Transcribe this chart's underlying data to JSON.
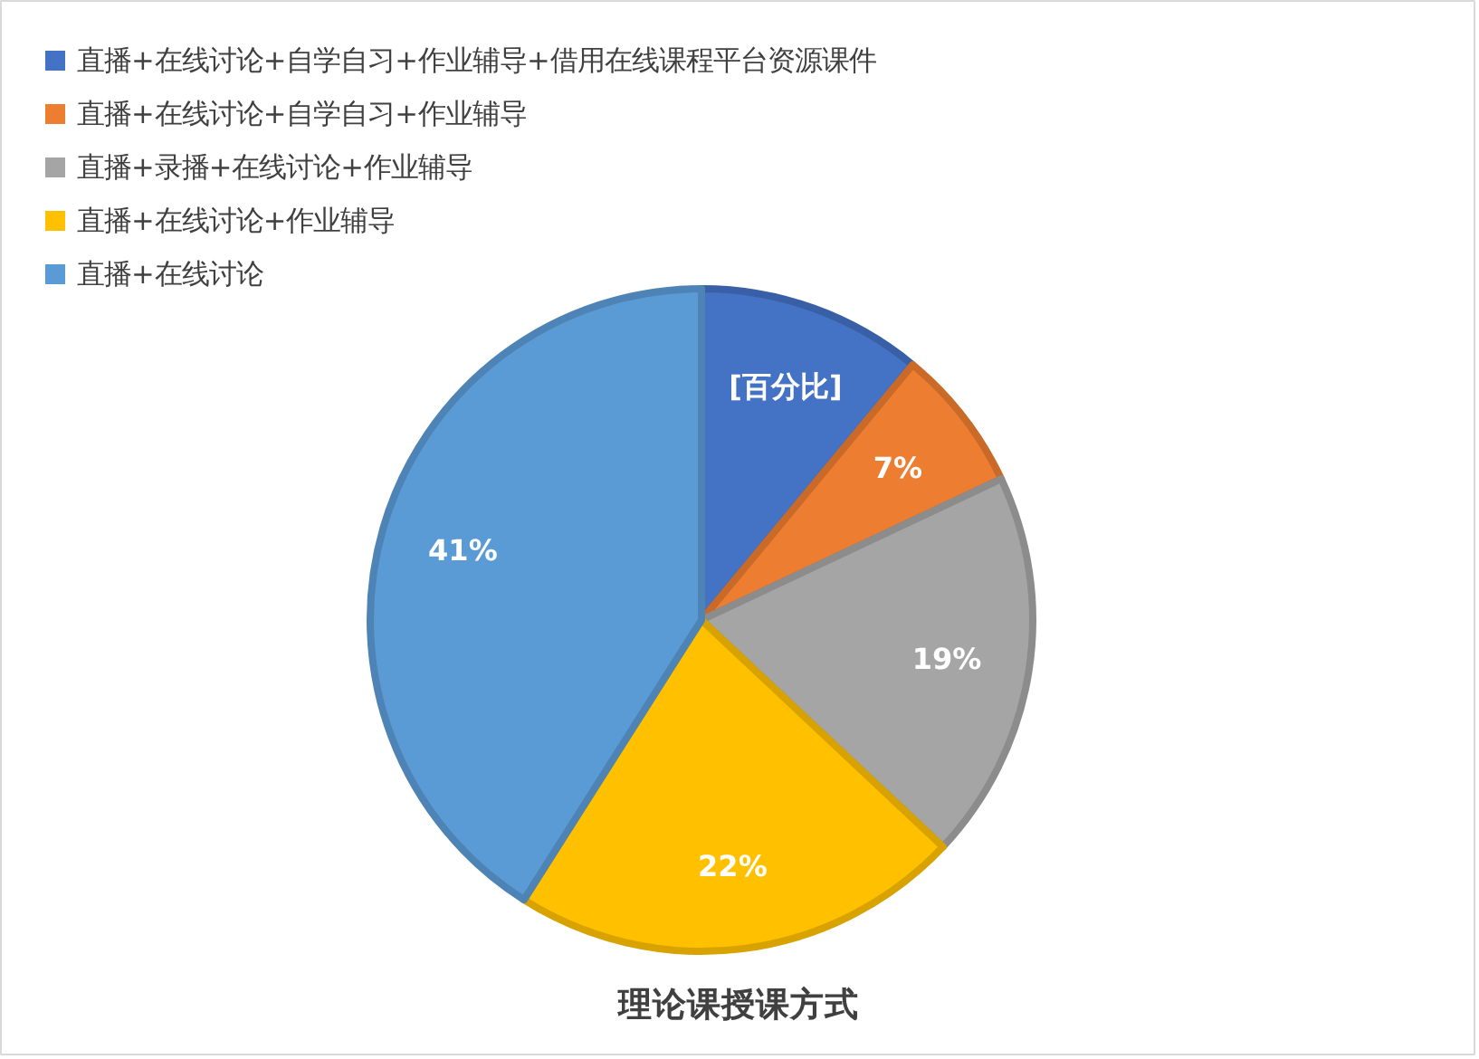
{
  "chart_data": {
    "type": "pie",
    "title": "理论课授课方式",
    "categories": [
      "直播+在线讨论+自学自习+作业辅导+借用在线课程平台资源课件",
      "直播+在线讨论+自学自习+作业辅导",
      "直播+录播+在线讨论+作业辅导",
      "直播+在线讨论+作业辅导",
      "直播+在线讨论"
    ],
    "values": [
      11,
      7,
      19,
      22,
      41
    ],
    "colors": [
      "#4472c4",
      "#ed7d31",
      "#a5a5a5",
      "#ffc000",
      "#5b9bd5"
    ],
    "value_labels": [
      "[百分比]",
      "7%",
      "19%",
      "22%",
      "41%"
    ],
    "legend": "top left"
  }
}
